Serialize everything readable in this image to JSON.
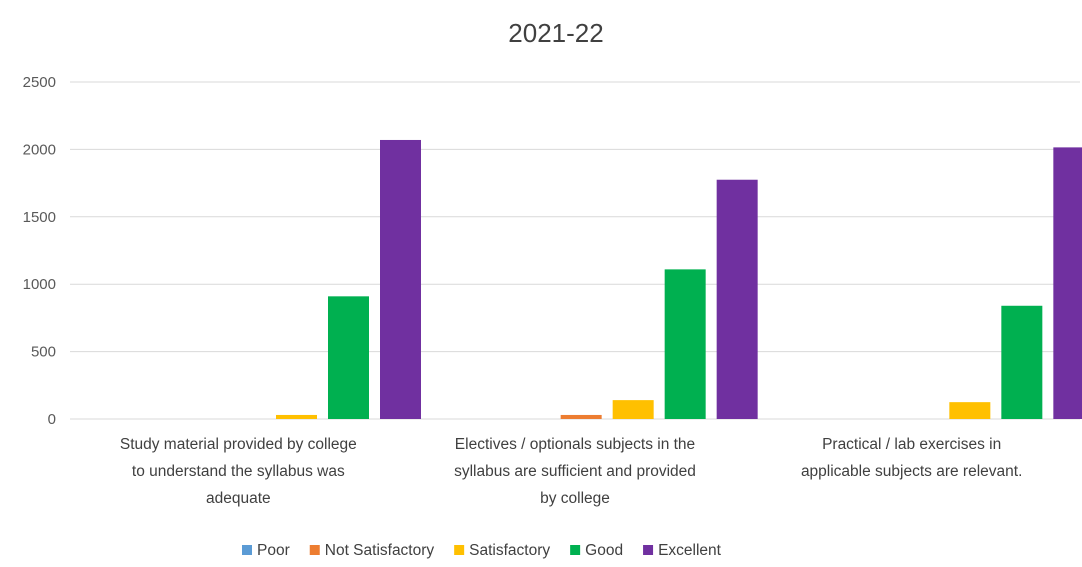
{
  "chart_data": {
    "type": "bar",
    "title": "2021-22",
    "xlabel": "",
    "ylabel": "",
    "ylim": [
      0,
      2500
    ],
    "yticks": [
      0,
      500,
      1000,
      1500,
      2000,
      2500
    ],
    "grid": true,
    "legend_position": "bottom",
    "categories": [
      [
        "Study material provided by college",
        "to understand the syllabus was",
        "adequate"
      ],
      [
        "Electives / optionals subjects in the",
        "syllabus are sufficient and provided",
        "by college"
      ],
      [
        "Practical / lab exercises in",
        "applicable subjects are relevant."
      ]
    ],
    "series": [
      {
        "name": "Poor",
        "color": "#5b9bd5",
        "values": [
          0,
          0,
          0
        ]
      },
      {
        "name": "Not Satisfactory",
        "color": "#ed7d31",
        "values": [
          0,
          30,
          0
        ]
      },
      {
        "name": "Satisfactory",
        "color": "#ffc000",
        "values": [
          30,
          140,
          125
        ]
      },
      {
        "name": "Good",
        "color": "#00b050",
        "values": [
          910,
          1110,
          840
        ]
      },
      {
        "name": "Excellent",
        "color": "#7030a0",
        "values": [
          2070,
          1775,
          2015
        ]
      }
    ]
  }
}
